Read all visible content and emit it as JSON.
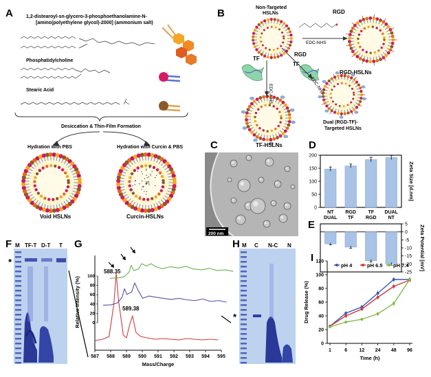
{
  "panels": [
    "A",
    "B",
    "C",
    "D",
    "E",
    "F",
    "G",
    "H",
    "I"
  ],
  "panel_a": {
    "lipid1": "1,2-distearoyl-sn-glycero-3-phosphoethanolamine-N-",
    "lipid1_line2": "[amino(polyethylene glycol)-2000] (ammonium salt)",
    "lipid2": "Phosphatidylcholine",
    "lipid3": "Stearic Acid",
    "process": "Desiccation & Thin-Film Formation",
    "hydration1": "Hydration with PBS",
    "hydration2": "Hydration with Curcin & PBS",
    "product1": "Void HSLNs",
    "product2": "Curcin-HSLNs"
  },
  "panel_b": {
    "start": "Non-Targeted",
    "start2": "HSLNs",
    "rgd1": "RGD",
    "rgd2": "RGD",
    "tf1": "TF",
    "tf2": "TF",
    "reagent1": "EDC-NHS",
    "reagent2": "EDC-NHS",
    "reagent3": "EDC-NHS",
    "product_rgd": "RGD-HSLNs",
    "product_tf": "TF-HSLNs",
    "product_dual1": "Dual (RGD-TF)-",
    "product_dual2": "Targeted HSLNs"
  },
  "panel_c": {
    "scale": "200 nm"
  },
  "panel_f": {
    "lanes": [
      "M",
      "TF-T",
      "D-T",
      "T"
    ],
    "marker": "*"
  },
  "panel_h": {
    "lanes": [
      "M",
      "C",
      "N-C",
      "N"
    ],
    "marker": "*"
  },
  "chart_data": [
    {
      "type": "bar",
      "panel": "D",
      "categories": [
        "NT",
        "RGD",
        "TF",
        "DUAL"
      ],
      "categories_line2": [
        "DUAL",
        "TF",
        "RGD",
        "NT"
      ],
      "values": [
        147,
        159,
        183,
        191
      ],
      "errors": [
        8,
        7,
        9,
        8
      ],
      "ylabel": "Zeta Size [d.nm]",
      "ylim": [
        0,
        200
      ],
      "yticks": [
        0,
        50,
        100,
        150,
        200
      ],
      "color": "#a9c3e6"
    },
    {
      "type": "bar",
      "panel": "E",
      "values": [
        -7.5,
        -9.5,
        -18,
        -20
      ],
      "errors": [
        0.6,
        0.7,
        0.8,
        0.9
      ],
      "ylabel": "Zeta Potential [mV]",
      "ylim": [
        -25,
        5
      ],
      "yticks": [
        5,
        0,
        -5,
        -10,
        -15,
        -20,
        -25
      ],
      "color": "#a9c3e6"
    },
    {
      "type": "line",
      "panel": "G",
      "xlabel": "Mass/Charge",
      "ylabel": "Relative Intensity (%)",
      "xlim": [
        587,
        595
      ],
      "xticks": [
        587,
        588,
        589,
        590,
        591,
        592,
        593,
        594,
        595
      ],
      "ylim": [
        0,
        100
      ],
      "yticks": [
        0,
        20,
        40,
        60,
        80,
        100
      ],
      "annotations": [
        "588.35",
        "589.38"
      ],
      "series": [
        {
          "color": "#d03a3a",
          "x": [
            587.0,
            587.5,
            587.9,
            588.2,
            588.35,
            588.5,
            588.8,
            589.0,
            589.2,
            589.38,
            589.6,
            589.9,
            590.3,
            590.8,
            591.3,
            591.8,
            592.3,
            592.8,
            593.3,
            593.8,
            594.3,
            594.8
          ],
          "y": [
            2,
            4,
            8,
            55,
            100,
            60,
            10,
            6,
            25,
            38,
            14,
            8,
            6,
            4,
            5,
            4,
            3,
            5,
            4,
            3,
            4,
            3
          ]
        },
        {
          "color": "#5252a6",
          "x": [
            587.0,
            587.5,
            587.9,
            588.2,
            588.35,
            588.5,
            588.8,
            589.0,
            589.2,
            589.5,
            589.9,
            590.3,
            590.8,
            591.3,
            591.8,
            592.3,
            592.8,
            593.3,
            593.8,
            594.3,
            594.8
          ],
          "y": [
            42,
            43,
            48,
            62,
            85,
            70,
            76,
            100,
            82,
            60,
            66,
            63,
            60,
            57,
            60,
            56,
            54,
            58,
            52,
            54,
            50
          ]
        },
        {
          "color": "#6ab04c",
          "x": [
            587.0,
            587.5,
            587.9,
            588.2,
            588.35,
            588.5,
            588.8,
            589.0,
            589.3,
            589.6,
            589.9,
            590.3,
            590.8,
            591.3,
            591.8,
            592.3,
            592.8,
            593.3,
            593.8,
            594.3,
            594.8
          ],
          "y": [
            62,
            63,
            66,
            78,
            96,
            82,
            86,
            100,
            94,
            100,
            92,
            87,
            92,
            89,
            93,
            86,
            84,
            88,
            82,
            84,
            80
          ]
        }
      ]
    },
    {
      "type": "line",
      "panel": "I",
      "xlabel": "Time (h)",
      "ylabel": "Drug Release (%)",
      "categories": [
        "1",
        "6",
        "12",
        "24",
        "48",
        "96"
      ],
      "ylim": [
        0,
        120
      ],
      "yticks": [
        0,
        20,
        40,
        60,
        80,
        100,
        120
      ],
      "legend": "top-left",
      "series": [
        {
          "name": "pH 4",
          "color": "#3a55b4",
          "values": [
            25,
            44,
            53,
            73,
            93,
            93
          ],
          "errors": [
            2,
            3,
            3,
            4,
            4,
            3
          ]
        },
        {
          "name": "pH 6.5",
          "color": "#d03a3a",
          "values": [
            25,
            40,
            50,
            67,
            83,
            92
          ],
          "errors": [
            2,
            3,
            3,
            3,
            4,
            3
          ]
        },
        {
          "name": "pH 7.4",
          "color": "#84b94a",
          "values": [
            24,
            31,
            35,
            43,
            58,
            93
          ],
          "errors": [
            2,
            2,
            2,
            3,
            4,
            4
          ]
        }
      ]
    }
  ]
}
